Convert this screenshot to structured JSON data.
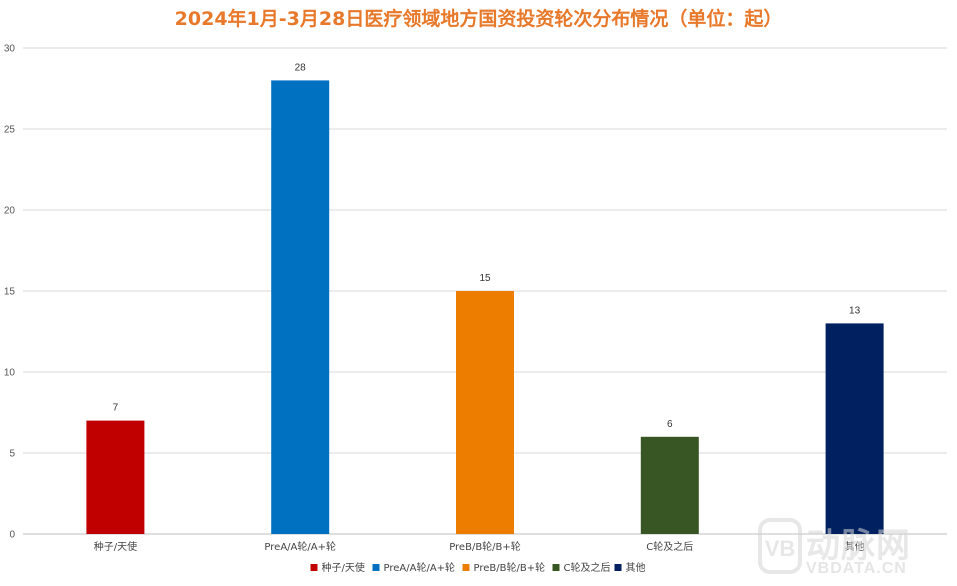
{
  "chart_data": {
    "type": "bar",
    "title": "2024年1月-3月28日医疗领域地方国资投资轮次分布情况（单位：起）",
    "categories": [
      "种子/天使",
      "PreA/A轮/A+轮",
      "PreB/B轮/B+轮",
      "C轮及之后",
      "其他"
    ],
    "values": [
      7,
      28,
      15,
      6,
      13
    ],
    "colors": [
      "#c00000",
      "#0070c0",
      "#ed7d00",
      "#375623",
      "#002060"
    ],
    "ylim": [
      0,
      30
    ],
    "yticks": [
      0,
      5,
      10,
      15,
      20,
      25,
      30
    ],
    "grid": true,
    "legend": {
      "position": "bottom",
      "entries": [
        "种子/天使",
        "PreA/A轮/A+轮",
        "PreB/B轮/B+轮",
        "C轮及之后",
        "其他"
      ]
    }
  },
  "watermark": {
    "logo_text": "VB",
    "main_text": "动脉网",
    "url_text": "VBDATA.CN"
  }
}
